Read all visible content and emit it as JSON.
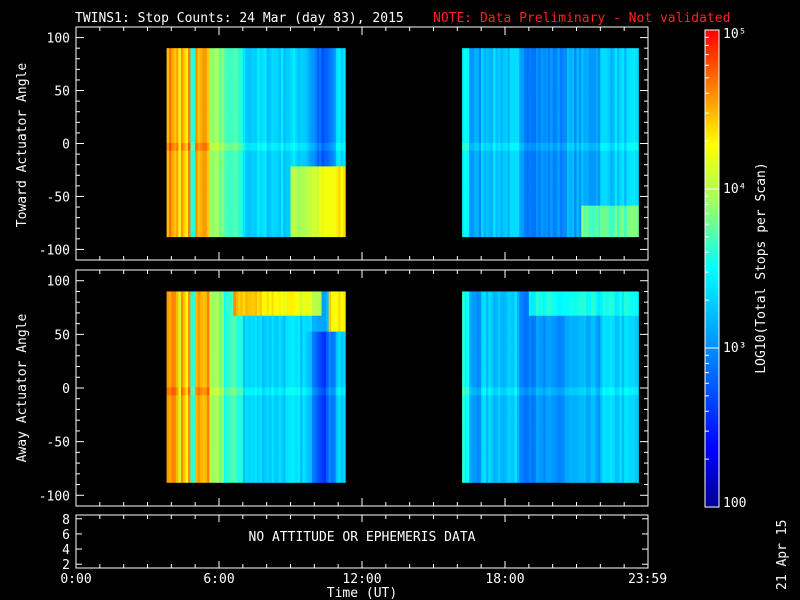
{
  "chart_data": {
    "type": "heatmap",
    "title": "TWINS1: Stop Counts: 24 Mar (day  83), 2015",
    "note": "NOTE: Data Preliminary - Not validated",
    "xlabel": "Time (UT)",
    "xlim": [
      0,
      24
    ],
    "x_ticks": [
      0,
      6,
      12,
      18,
      23.98
    ],
    "x_tick_labels": [
      "0:00",
      "6:00",
      "12:00",
      "18:00",
      "23:59"
    ],
    "data_intervals_hours": [
      [
        3.8,
        11.3
      ],
      [
        16.2,
        23.6
      ]
    ],
    "panels": [
      {
        "name": "toward",
        "ylabel": "Toward Actuator Angle",
        "ylim": [
          -110,
          110
        ],
        "y_ticks": [
          100,
          50,
          0,
          -50,
          -100
        ],
        "y_tick_labels": [
          "100",
          "50",
          "0",
          "-50",
          "-100"
        ],
        "angle_range": [
          -88,
          90
        ]
      },
      {
        "name": "away",
        "ylabel": "Away Actuator Angle",
        "ylim": [
          -110,
          110
        ],
        "y_ticks": [
          100,
          50,
          0,
          -50,
          -100
        ],
        "y_tick_labels": [
          "100",
          "50",
          "0",
          "-50",
          "-100"
        ],
        "angle_range": [
          -88,
          90
        ]
      }
    ],
    "ephemeris_panel": {
      "ylim": [
        1.5,
        8.5
      ],
      "y_ticks": [
        8,
        6,
        4,
        2
      ],
      "y_tick_labels": [
        "8",
        "6",
        "4",
        "2"
      ],
      "message": "NO ATTITUDE OR EPHEMERIS DATA"
    },
    "colorbar": {
      "label": "LOG10(Total Stops per Scan)",
      "range": [
        100,
        100000
      ],
      "scale": "log",
      "ticks": [
        100,
        1000,
        10000,
        100000
      ],
      "tick_labels": [
        "100",
        "10³",
        "10⁴",
        "10⁵"
      ]
    }
  },
  "footer_date": "21 Apr 15"
}
